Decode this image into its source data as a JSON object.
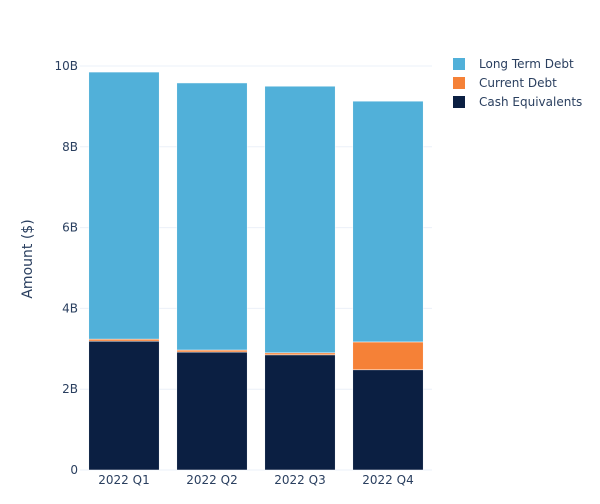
{
  "chart_data": {
    "type": "bar",
    "stacked": true,
    "title": "",
    "xlabel": "",
    "ylabel": "Amount ($)",
    "ylim": [
      0,
      10000000000
    ],
    "yticks": [
      0,
      2000000000,
      4000000000,
      6000000000,
      8000000000,
      10000000000
    ],
    "ytick_labels": [
      "0",
      "2B",
      "4B",
      "6B",
      "8B",
      "10B"
    ],
    "grid": true,
    "legend_position": "top-right",
    "categories": [
      "2022 Q1",
      "2022 Q2",
      "2022 Q3",
      "2022 Q4"
    ],
    "series": [
      {
        "name": "Cash Equivalents",
        "color": "#0b1f42",
        "values": [
          3190000000,
          2920000000,
          2850000000,
          2480000000
        ]
      },
      {
        "name": "Current Debt",
        "color": "#f58137",
        "values": [
          50000000,
          50000000,
          50000000,
          690000000
        ]
      },
      {
        "name": "Long Term Debt",
        "color": "#51b0d9",
        "values": [
          6610000000,
          6610000000,
          6600000000,
          5960000000
        ]
      }
    ],
    "legend_order": [
      "Long Term Debt",
      "Current Debt",
      "Cash Equivalents"
    ]
  }
}
